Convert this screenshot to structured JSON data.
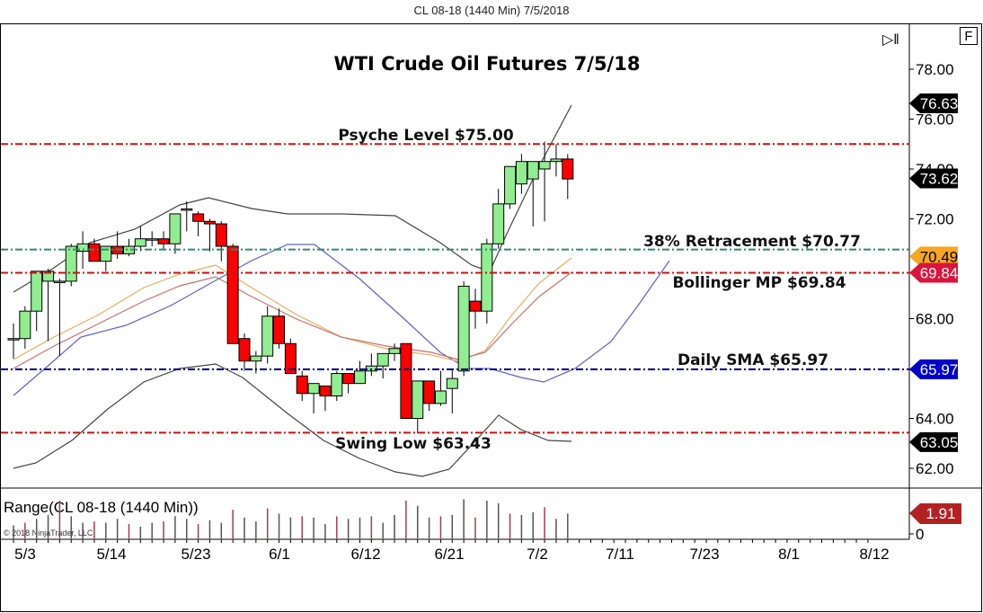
{
  "window": {
    "title": "CL 08-18 (1440 Min)  7/5/2018"
  },
  "toolbar": {
    "f_button": "F",
    "scroll_end_icon": "scroll-to-end"
  },
  "chart_data": {
    "type": "candlestick",
    "title": "WTI Crude Oil Futures 7/5/18",
    "instrument": "CL 08-18 (1440 Min)",
    "y_ticks": [
      "78.00",
      "76.00",
      "74.00",
      "72.00",
      "68.00",
      "64.00",
      "62.00"
    ],
    "ylim": [
      61.5,
      78.5
    ],
    "x_ticks": [
      "5/3",
      "5/14",
      "5/23",
      "6/1",
      "6/12",
      "6/21",
      "7/2",
      "7/11",
      "7/23",
      "8/1",
      "8/12"
    ],
    "candles": [
      {
        "o": 67.2,
        "h": 67.8,
        "l": 66.4,
        "c": 67.2
      },
      {
        "o": 67.2,
        "h": 68.5,
        "l": 66.8,
        "c": 68.3
      },
      {
        "o": 68.3,
        "h": 69.9,
        "l": 67.5,
        "c": 69.9
      },
      {
        "o": 69.5,
        "h": 70.0,
        "l": 67.1,
        "c": 69.9
      },
      {
        "o": 69.5,
        "h": 69.6,
        "l": 66.5,
        "c": 69.5
      },
      {
        "o": 69.5,
        "h": 71.0,
        "l": 69.3,
        "c": 70.9
      },
      {
        "o": 70.7,
        "h": 71.5,
        "l": 70.0,
        "c": 71.0
      },
      {
        "o": 71.0,
        "h": 71.2,
        "l": 70.3,
        "c": 70.3
      },
      {
        "o": 70.3,
        "h": 70.9,
        "l": 69.9,
        "c": 70.9
      },
      {
        "o": 70.9,
        "h": 71.5,
        "l": 70.4,
        "c": 70.6
      },
      {
        "o": 70.6,
        "h": 71.2,
        "l": 70.5,
        "c": 70.9
      },
      {
        "o": 70.9,
        "h": 71.7,
        "l": 70.7,
        "c": 71.2
      },
      {
        "o": 71.2,
        "h": 71.5,
        "l": 70.9,
        "c": 71.2
      },
      {
        "o": 71.2,
        "h": 71.5,
        "l": 70.8,
        "c": 71.0
      },
      {
        "o": 71.0,
        "h": 71.9,
        "l": 70.6,
        "c": 72.2
      },
      {
        "o": 72.4,
        "h": 72.7,
        "l": 71.5,
        "c": 72.4
      },
      {
        "o": 72.2,
        "h": 72.3,
        "l": 71.3,
        "c": 71.9
      },
      {
        "o": 71.9,
        "h": 72.0,
        "l": 70.7,
        "c": 71.8
      },
      {
        "o": 71.8,
        "h": 71.9,
        "l": 70.3,
        "c": 70.9
      },
      {
        "o": 70.9,
        "h": 71.0,
        "l": 67.0,
        "c": 67.0
      },
      {
        "o": 67.2,
        "h": 67.4,
        "l": 65.9,
        "c": 66.3
      },
      {
        "o": 66.3,
        "h": 66.7,
        "l": 65.8,
        "c": 66.5
      },
      {
        "o": 66.5,
        "h": 68.5,
        "l": 66.2,
        "c": 68.1
      },
      {
        "o": 68.1,
        "h": 68.4,
        "l": 66.8,
        "c": 67.0
      },
      {
        "o": 67.0,
        "h": 67.2,
        "l": 65.8,
        "c": 65.8
      },
      {
        "o": 65.7,
        "h": 65.9,
        "l": 64.7,
        "c": 65.0
      },
      {
        "o": 65.0,
        "h": 65.4,
        "l": 64.2,
        "c": 65.4
      },
      {
        "o": 65.3,
        "h": 65.3,
        "l": 64.3,
        "c": 64.9
      },
      {
        "o": 64.9,
        "h": 65.9,
        "l": 64.7,
        "c": 65.8
      },
      {
        "o": 65.8,
        "h": 65.8,
        "l": 65.0,
        "c": 65.4
      },
      {
        "o": 65.4,
        "h": 66.3,
        "l": 65.4,
        "c": 65.9
      },
      {
        "o": 65.9,
        "h": 66.6,
        "l": 65.7,
        "c": 66.1
      },
      {
        "o": 66.1,
        "h": 66.6,
        "l": 65.6,
        "c": 66.6
      },
      {
        "o": 66.6,
        "h": 67.0,
        "l": 66.3,
        "c": 66.8
      },
      {
        "o": 67.0,
        "h": 67.0,
        "l": 64.0,
        "c": 64.0
      },
      {
        "o": 64.0,
        "h": 65.5,
        "l": 63.4,
        "c": 65.5
      },
      {
        "o": 65.5,
        "h": 65.5,
        "l": 64.3,
        "c": 64.6
      },
      {
        "o": 64.6,
        "h": 65.9,
        "l": 64.5,
        "c": 65.1
      },
      {
        "o": 65.2,
        "h": 66.0,
        "l": 64.2,
        "c": 65.6
      },
      {
        "o": 65.9,
        "h": 69.5,
        "l": 65.7,
        "c": 69.3
      },
      {
        "o": 68.7,
        "h": 69.2,
        "l": 67.6,
        "c": 68.3
      },
      {
        "o": 68.3,
        "h": 71.2,
        "l": 67.8,
        "c": 71.0
      },
      {
        "o": 71.0,
        "h": 73.2,
        "l": 70.8,
        "c": 72.6
      },
      {
        "o": 72.6,
        "h": 74.0,
        "l": 72.4,
        "c": 74.1
      },
      {
        "o": 73.4,
        "h": 74.6,
        "l": 73.0,
        "c": 74.3
      },
      {
        "o": 73.6,
        "h": 74.3,
        "l": 71.7,
        "c": 74.3
      },
      {
        "o": 74.0,
        "h": 75.1,
        "l": 71.9,
        "c": 74.3
      },
      {
        "o": 74.3,
        "h": 75.0,
        "l": 73.7,
        "c": 74.4
      },
      {
        "o": 74.4,
        "h": 74.6,
        "l": 72.8,
        "c": 73.6
      }
    ],
    "horizontal_levels": [
      {
        "label": "Psyche Level $75.00",
        "price": 75.0,
        "color": "#cc1111"
      },
      {
        "label": "38% Retracement $70.77",
        "price": 70.77,
        "color": "#2e8b6e"
      },
      {
        "label": "Bollinger MP $69.84",
        "price": 69.84,
        "color": "#cc1111"
      },
      {
        "label": "Daily SMA $65.97",
        "price": 65.97,
        "color": "#000080"
      },
      {
        "label": "Swing Low $63.43",
        "price": 63.43,
        "color": "#cc1111"
      }
    ],
    "price_markers": [
      {
        "value": "76.63",
        "price": 76.63,
        "bg": "#000000",
        "fg": "#ffffff"
      },
      {
        "value": "73.62",
        "price": 73.62,
        "bg": "#000000",
        "fg": "#ffffff"
      },
      {
        "value": "70.49",
        "price": 70.49,
        "bg": "#f5a623",
        "fg": "#000000"
      },
      {
        "value": "69.84",
        "price": 69.84,
        "bg": "#dc143c",
        "fg": "#ffffff"
      },
      {
        "value": "65.97",
        "price": 65.97,
        "bg": "#0000cd",
        "fg": "#ffffff"
      },
      {
        "value": "63.05",
        "price": 63.05,
        "bg": "#000000",
        "fg": "#ffffff"
      }
    ],
    "indicator": {
      "title": "Range(CL 08-18 (1440 Min))",
      "last_value": "1.91",
      "zero_label": "0",
      "values": [
        1.0,
        1.2,
        1.5,
        1.8,
        2.9,
        1.7,
        1.2,
        1.3,
        1.2,
        1.5,
        1.1,
        0.9,
        1.2,
        1.3,
        1.7,
        1.5,
        1.1,
        1.4,
        1.2,
        2.2,
        1.6,
        1.3,
        2.3,
        1.9,
        1.6,
        1.7,
        1.6,
        1.1,
        1.7,
        1.5,
        1.6,
        1.7,
        1.2,
        1.8,
        2.9,
        2.5,
        1.6,
        1.7,
        1.8,
        3.0,
        1.6,
        2.9,
        2.7,
        1.9,
        1.8,
        2.0,
        2.4,
        1.5,
        1.9
      ],
      "copyright": "© 2018 NinjaTrader, LLC"
    }
  }
}
